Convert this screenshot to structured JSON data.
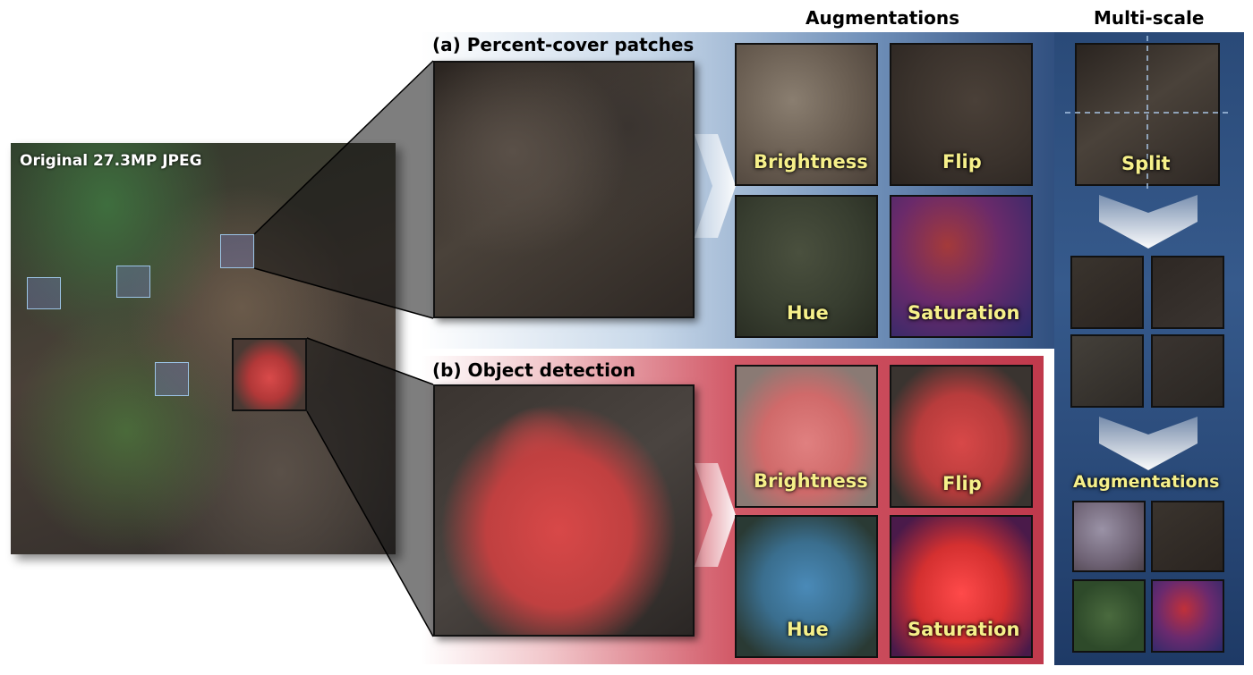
{
  "original": {
    "label": "Original 27.3MP JPEG"
  },
  "panel_a": {
    "title": "(a) Percent-cover patches",
    "augmentations": [
      "Brightness",
      "Flip",
      "Hue",
      "Saturation"
    ]
  },
  "panel_b": {
    "title": "(b) Object detection",
    "augmentations": [
      "Brightness",
      "Flip",
      "Hue",
      "Saturation"
    ]
  },
  "headers": {
    "augmentations": "Augmentations",
    "multiscale": "Multi-scale"
  },
  "multiscale": {
    "split_label": "Split",
    "augmentations_label": "Augmentations"
  },
  "colors": {
    "panel_a_gradient": "#1f3f6c",
    "panel_b_gradient": "#c0394c",
    "label_yellow": "#f6f08a"
  }
}
